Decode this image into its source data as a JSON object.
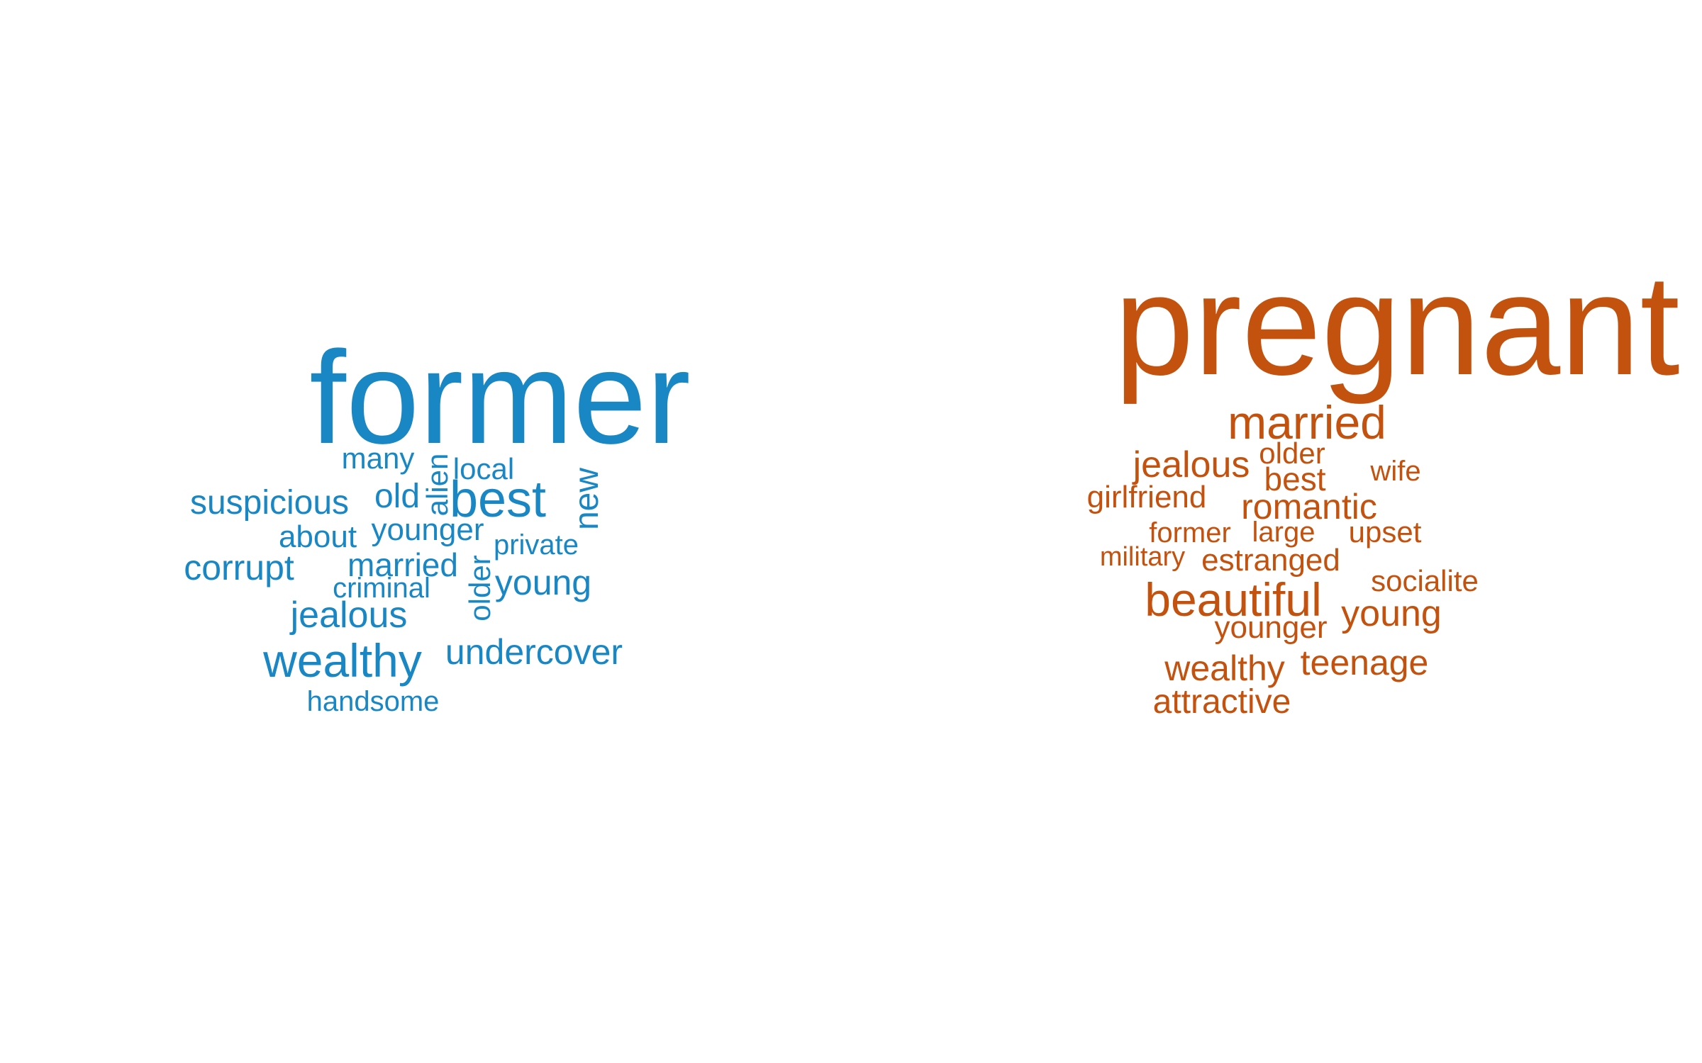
{
  "colors": {
    "left_cloud": "#1a87c5",
    "right_cloud": "#c4520f",
    "background": "#ffffff"
  },
  "left_cloud": {
    "words": [
      {
        "text": "former",
        "size": "large"
      },
      {
        "text": "many",
        "size": "small"
      },
      {
        "text": "alien",
        "size": "small",
        "orientation": "vertical"
      },
      {
        "text": "local",
        "size": "small"
      },
      {
        "text": "new",
        "size": "small",
        "orientation": "vertical"
      },
      {
        "text": "suspicious",
        "size": "small"
      },
      {
        "text": "old",
        "size": "small"
      },
      {
        "text": "best",
        "size": "medium"
      },
      {
        "text": "about",
        "size": "small"
      },
      {
        "text": "younger",
        "size": "small"
      },
      {
        "text": "private",
        "size": "small"
      },
      {
        "text": "corrupt",
        "size": "small"
      },
      {
        "text": "married",
        "size": "small"
      },
      {
        "text": "older",
        "size": "small",
        "orientation": "vertical"
      },
      {
        "text": "young",
        "size": "small"
      },
      {
        "text": "criminal",
        "size": "small"
      },
      {
        "text": "jealous",
        "size": "small"
      },
      {
        "text": "wealthy",
        "size": "medium"
      },
      {
        "text": "undercover",
        "size": "small"
      },
      {
        "text": "handsome",
        "size": "small"
      }
    ]
  },
  "right_cloud": {
    "words": [
      {
        "text": "pregnant",
        "size": "large"
      },
      {
        "text": "married",
        "size": "medium"
      },
      {
        "text": "jealous",
        "size": "small"
      },
      {
        "text": "older",
        "size": "small"
      },
      {
        "text": "best",
        "size": "small"
      },
      {
        "text": "wife",
        "size": "small"
      },
      {
        "text": "girlfriend",
        "size": "small"
      },
      {
        "text": "romantic",
        "size": "small"
      },
      {
        "text": "former",
        "size": "small"
      },
      {
        "text": "large",
        "size": "small"
      },
      {
        "text": "upset",
        "size": "small"
      },
      {
        "text": "military",
        "size": "small"
      },
      {
        "text": "estranged",
        "size": "small"
      },
      {
        "text": "socialite",
        "size": "small"
      },
      {
        "text": "beautiful",
        "size": "medium"
      },
      {
        "text": "young",
        "size": "small"
      },
      {
        "text": "younger",
        "size": "small"
      },
      {
        "text": "wealthy",
        "size": "small"
      },
      {
        "text": "teenage",
        "size": "small"
      },
      {
        "text": "attractive",
        "size": "small"
      }
    ]
  }
}
